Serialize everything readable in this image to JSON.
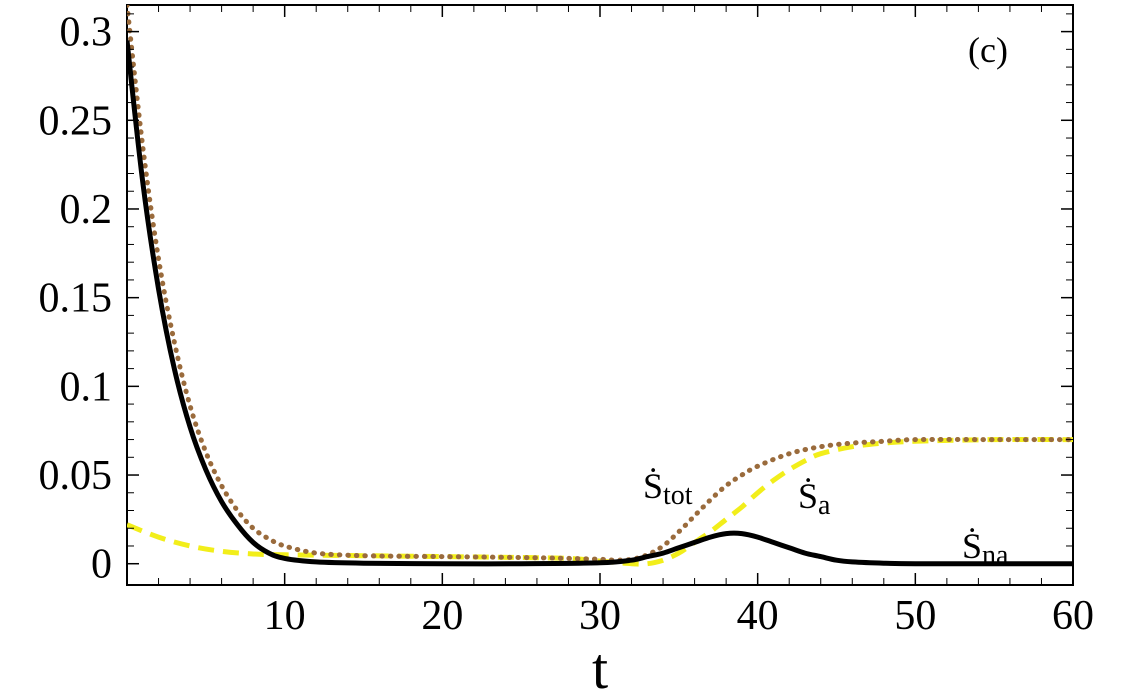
{
  "chart_data": {
    "type": "line",
    "panel_label": "(c)",
    "xlabel": "t",
    "ylabel": "",
    "xlim": [
      0,
      60
    ],
    "ylim": [
      -0.012,
      0.315
    ],
    "x_ticks": [
      10,
      20,
      30,
      40,
      50,
      60
    ],
    "x_tick_labels": [
      "10",
      "20",
      "30",
      "40",
      "50",
      "60"
    ],
    "y_ticks": [
      0,
      0.05,
      0.1,
      0.15,
      0.2,
      0.25,
      0.3
    ],
    "y_tick_labels": [
      "0",
      "0.05",
      "0.1",
      "0.15",
      "0.2",
      "0.25",
      "0.3"
    ],
    "grid": false,
    "series": [
      {
        "name": "Ṡtot",
        "label_main": "Ṡ",
        "label_sub": "tot",
        "color": "#9a6b3c",
        "style": "dotted",
        "x": [
          0,
          1,
          2,
          3,
          4,
          5,
          6,
          7,
          8,
          9,
          10,
          12,
          15,
          20,
          25,
          28,
          30,
          31,
          32,
          33,
          34,
          35,
          36,
          37,
          38,
          39,
          40,
          42,
          44,
          46,
          48,
          50,
          55,
          60
        ],
        "y": [
          0.315,
          0.235,
          0.172,
          0.125,
          0.089,
          0.063,
          0.044,
          0.03,
          0.02,
          0.014,
          0.01,
          0.006,
          0.0045,
          0.004,
          0.0035,
          0.003,
          0.0025,
          0.002,
          0.0025,
          0.005,
          0.01,
          0.018,
          0.027,
          0.036,
          0.044,
          0.05,
          0.055,
          0.062,
          0.066,
          0.068,
          0.069,
          0.07,
          0.07,
          0.07
        ]
      },
      {
        "name": "Ṡa",
        "label_main": "Ṡ",
        "label_sub": "a",
        "color": "#f2ee1a",
        "style": "dashed",
        "x": [
          0,
          2,
          4,
          6,
          8,
          10,
          15,
          20,
          25,
          28,
          30,
          32,
          33,
          34,
          35,
          36,
          37,
          38,
          39,
          40,
          41,
          42,
          43,
          44,
          46,
          48,
          50,
          55,
          60
        ],
        "y": [
          0.022,
          0.015,
          0.01,
          0.007,
          0.0055,
          0.005,
          0.0045,
          0.004,
          0.0035,
          0.003,
          0.0015,
          0.0,
          0.0,
          0.002,
          0.006,
          0.012,
          0.018,
          0.025,
          0.032,
          0.04,
          0.047,
          0.053,
          0.058,
          0.062,
          0.066,
          0.068,
          0.069,
          0.07,
          0.07
        ]
      },
      {
        "name": "Ṡna",
        "label_main": "Ṡ",
        "label_sub": "na",
        "color": "#000000",
        "style": "solid",
        "x": [
          0,
          1,
          2,
          3,
          4,
          5,
          6,
          7,
          8,
          9,
          10,
          12,
          15,
          20,
          25,
          30,
          32,
          33,
          34,
          35,
          36,
          37,
          38,
          39,
          40,
          41,
          42,
          43,
          44,
          45,
          46,
          48,
          50,
          55,
          60
        ],
        "y": [
          0.295,
          0.215,
          0.155,
          0.11,
          0.077,
          0.053,
          0.035,
          0.022,
          0.012,
          0.006,
          0.003,
          0.001,
          0.0003,
          0.0,
          0.0,
          0.0005,
          0.002,
          0.004,
          0.006,
          0.009,
          0.012,
          0.015,
          0.017,
          0.017,
          0.015,
          0.012,
          0.009,
          0.006,
          0.004,
          0.002,
          0.001,
          0.0003,
          0.0,
          0.0,
          0.0
        ]
      }
    ]
  }
}
